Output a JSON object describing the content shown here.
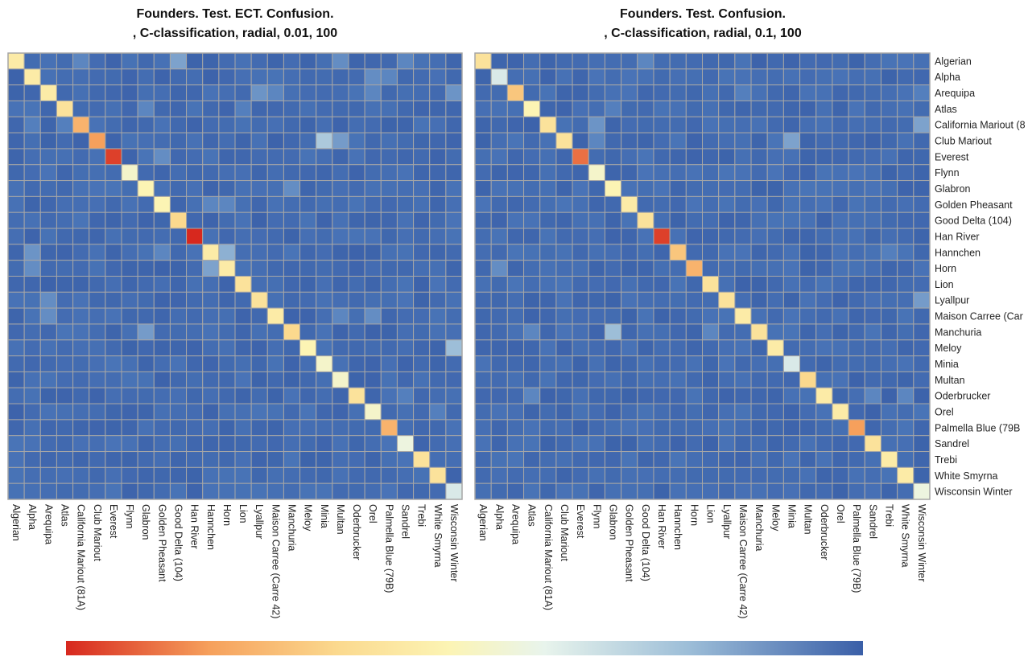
{
  "chart_data": [
    {
      "type": "heatmap",
      "title": "Founders. Test. ECT. Confusion.",
      "subtitle": ", C-classification, radial, 0.01, 100",
      "xlabel": "",
      "ylabel": "",
      "categories": [
        "Algerian",
        "Alpha",
        "Arequipa",
        "Atlas",
        "California Mariout (81A)",
        "Club Mariout",
        "Everest",
        "Flynn",
        "Glabron",
        "Golden Pheasant",
        "Good Delta (104)",
        "Han River",
        "Hannchen",
        "Horn",
        "Lion",
        "Lyallpur",
        "Maison Carree (Carre 42)",
        "Manchuria",
        "Meloy",
        "Minia",
        "Multan",
        "Oderbrucker",
        "Orel",
        "Palmella Blue (79B)",
        "Sandrel",
        "Trebi",
        "White Smyrna",
        "Wisconsin Winter"
      ],
      "diagonal": [
        0.5,
        0.5,
        0.5,
        0.55,
        0.7,
        0.75,
        0.95,
        0.4,
        0.45,
        0.45,
        0.6,
        1.0,
        0.5,
        0.5,
        0.55,
        0.55,
        0.5,
        0.6,
        0.45,
        0.4,
        0.4,
        0.55,
        0.4,
        0.7,
        0.35,
        0.55,
        0.55,
        0.3
      ],
      "off_diagonal": [
        {
          "row": 0,
          "col": 10,
          "value": 0.18
        },
        {
          "row": 0,
          "col": 4,
          "value": 0.14
        },
        {
          "row": 0,
          "col": 20,
          "value": 0.15
        },
        {
          "row": 0,
          "col": 24,
          "value": 0.14
        },
        {
          "row": 1,
          "col": 22,
          "value": 0.15
        },
        {
          "row": 1,
          "col": 23,
          "value": 0.14
        },
        {
          "row": 2,
          "col": 15,
          "value": 0.16
        },
        {
          "row": 2,
          "col": 16,
          "value": 0.14
        },
        {
          "row": 2,
          "col": 22,
          "value": 0.14
        },
        {
          "row": 2,
          "col": 27,
          "value": 0.16
        },
        {
          "row": 3,
          "col": 8,
          "value": 0.14
        },
        {
          "row": 3,
          "col": 14,
          "value": 0.13
        },
        {
          "row": 4,
          "col": 3,
          "value": 0.13
        },
        {
          "row": 4,
          "col": 1,
          "value": 0.13
        },
        {
          "row": 5,
          "col": 19,
          "value": 0.24
        },
        {
          "row": 5,
          "col": 20,
          "value": 0.17
        },
        {
          "row": 6,
          "col": 9,
          "value": 0.15
        },
        {
          "row": 8,
          "col": 17,
          "value": 0.15
        },
        {
          "row": 9,
          "col": 12,
          "value": 0.14
        },
        {
          "row": 9,
          "col": 13,
          "value": 0.14
        },
        {
          "row": 12,
          "col": 1,
          "value": 0.16
        },
        {
          "row": 12,
          "col": 9,
          "value": 0.14
        },
        {
          "row": 12,
          "col": 13,
          "value": 0.2
        },
        {
          "row": 13,
          "col": 1,
          "value": 0.15
        },
        {
          "row": 13,
          "col": 12,
          "value": 0.18
        },
        {
          "row": 15,
          "col": 2,
          "value": 0.15
        },
        {
          "row": 16,
          "col": 2,
          "value": 0.15
        },
        {
          "row": 16,
          "col": 20,
          "value": 0.14
        },
        {
          "row": 16,
          "col": 22,
          "value": 0.15
        },
        {
          "row": 17,
          "col": 8,
          "value": 0.17
        },
        {
          "row": 18,
          "col": 27,
          "value": 0.22
        },
        {
          "row": 21,
          "col": 24,
          "value": 0.13
        },
        {
          "row": 22,
          "col": 26,
          "value": 0.13
        }
      ],
      "legend": "bottom"
    },
    {
      "type": "heatmap",
      "title": "Founders. Test. Confusion.",
      "subtitle": ", C-classification, radial, 0.1, 100",
      "xlabel": "",
      "ylabel": "",
      "categories": [
        "Algerian",
        "Alpha",
        "Arequipa",
        "Atlas",
        "California Mariout (81A)",
        "Club Mariout",
        "Everest",
        "Flynn",
        "Glabron",
        "Golden Pheasant",
        "Good Delta (104)",
        "Han River",
        "Hannchen",
        "Horn",
        "Lion",
        "Lyallpur",
        "Maison Carree (Carre 42)",
        "Manchuria",
        "Meloy",
        "Minia",
        "Multan",
        "Oderbrucker",
        "Orel",
        "Palmella Blue (79B)",
        "Sandrel",
        "Trebi",
        "White Smyrna",
        "Wisconsin Winter"
      ],
      "row_labels": [
        "Algerian",
        "Alpha",
        "Arequipa",
        "Atlas",
        "California Mariout (8",
        "Club Mariout",
        "Everest",
        "Flynn",
        "Glabron",
        "Golden Pheasant",
        "Good Delta (104)",
        "Han River",
        "Hannchen",
        "Horn",
        "Lion",
        "Lyallpur",
        "Maison Carree (Car",
        "Manchuria",
        "Meloy",
        "Minia",
        "Multan",
        "Oderbrucker",
        "Orel",
        "Palmella Blue (79B",
        "Sandrel",
        "Trebi",
        "White Smyrna",
        "Wisconsin Winter"
      ],
      "diagonal": [
        0.55,
        0.3,
        0.65,
        0.45,
        0.55,
        0.55,
        0.85,
        0.4,
        0.45,
        0.5,
        0.55,
        0.95,
        0.65,
        0.7,
        0.55,
        0.55,
        0.5,
        0.55,
        0.5,
        0.3,
        0.6,
        0.5,
        0.5,
        0.75,
        0.55,
        0.5,
        0.5,
        0.35
      ],
      "off_diagonal": [
        {
          "row": 0,
          "col": 10,
          "value": 0.14
        },
        {
          "row": 2,
          "col": 16,
          "value": 0.13
        },
        {
          "row": 2,
          "col": 27,
          "value": 0.13
        },
        {
          "row": 3,
          "col": 8,
          "value": 0.13
        },
        {
          "row": 4,
          "col": 7,
          "value": 0.16
        },
        {
          "row": 4,
          "col": 27,
          "value": 0.18
        },
        {
          "row": 5,
          "col": 19,
          "value": 0.18
        },
        {
          "row": 5,
          "col": 7,
          "value": 0.14
        },
        {
          "row": 12,
          "col": 25,
          "value": 0.13
        },
        {
          "row": 13,
          "col": 1,
          "value": 0.15
        },
        {
          "row": 15,
          "col": 27,
          "value": 0.17
        },
        {
          "row": 17,
          "col": 8,
          "value": 0.22
        },
        {
          "row": 17,
          "col": 3,
          "value": 0.14
        },
        {
          "row": 17,
          "col": 14,
          "value": 0.14
        },
        {
          "row": 21,
          "col": 3,
          "value": 0.14
        },
        {
          "row": 21,
          "col": 24,
          "value": 0.14
        },
        {
          "row": 21,
          "col": 26,
          "value": 0.14
        }
      ],
      "legend": "bottom"
    }
  ],
  "colors": {
    "scale_low": "#3a5fa8",
    "scale_mid_blue": "#9dbed8",
    "scale_light": "#e8f4ec",
    "scale_yellow": "#fcf4b4",
    "scale_orange": "#f6a05c",
    "scale_high": "#d7281e",
    "grid_line": "#a6a6a6"
  }
}
